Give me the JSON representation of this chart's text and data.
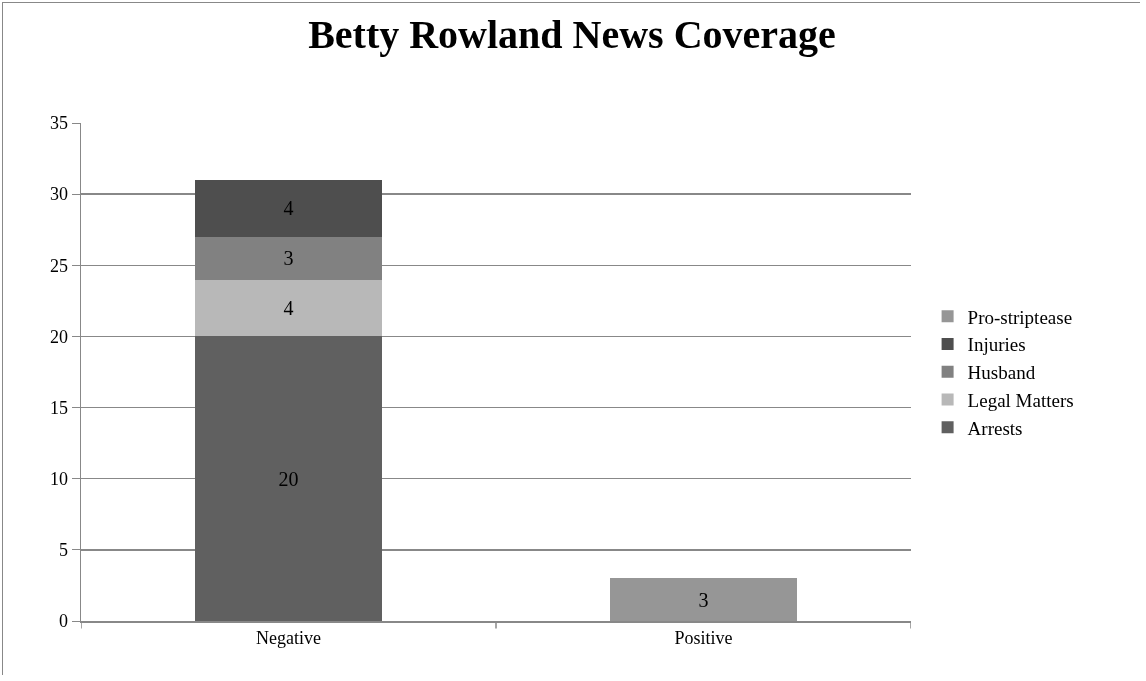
{
  "chart_data": {
    "type": "bar",
    "title": "Betty Rowland News Coverage",
    "categories": [
      "Negative",
      "Positive"
    ],
    "stacked": true,
    "data_labels": true,
    "series": [
      {
        "name": "Arrests",
        "color": "#606060",
        "values": [
          20,
          null
        ]
      },
      {
        "name": "Legal Matters",
        "color": "#b8b8b8",
        "values": [
          4,
          null
        ]
      },
      {
        "name": "Husband",
        "color": "#818181",
        "values": [
          3,
          null
        ]
      },
      {
        "name": "Injuries",
        "color": "#4e4e4e",
        "values": [
          4,
          null
        ]
      },
      {
        "name": "Pro-striptease",
        "color": "#969696",
        "values": [
          null,
          3
        ]
      }
    ],
    "ylim": [
      0,
      35
    ],
    "yticks": [
      0,
      5,
      10,
      15,
      20,
      25,
      30,
      35
    ],
    "grid": "y",
    "legend": "right"
  }
}
